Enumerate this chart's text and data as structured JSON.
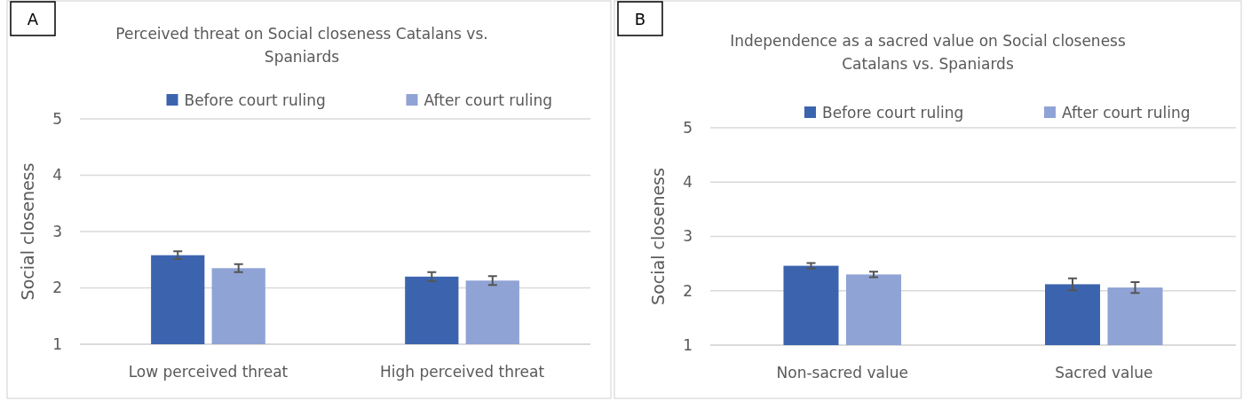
{
  "chart_data": [
    {
      "type": "bar",
      "title": "Perceived threat on Social closeness Catalans vs. Spaniards",
      "ylabel": "Social closeness",
      "categories": [
        "Low perceived threat",
        "High perceived threat"
      ],
      "series": [
        {
          "name": "Before court ruling",
          "color": "#3c64ae",
          "values": [
            2.58,
            2.2
          ],
          "errors": [
            0.07,
            0.08
          ]
        },
        {
          "name": "After court ruling",
          "color": "#8fa3d4",
          "values": [
            2.35,
            2.13
          ],
          "errors": [
            0.07,
            0.08
          ]
        }
      ],
      "ylim": [
        1,
        5
      ],
      "yticks": [
        1,
        2,
        3,
        4,
        5
      ],
      "grid": "y",
      "legend": "top",
      "annotations": [
        "A"
      ]
    },
    {
      "type": "bar",
      "title": "Independence as a sacred value on Social closeness Catalans vs. Spaniards",
      "ylabel": "Social closeness",
      "categories": [
        "Non-sacred value",
        "Sacred value"
      ],
      "series": [
        {
          "name": "Before court ruling",
          "color": "#3c64ae",
          "values": [
            2.46,
            2.12
          ],
          "errors": [
            0.05,
            0.11
          ]
        },
        {
          "name": "After court ruling",
          "color": "#8fa3d4",
          "values": [
            2.3,
            2.06
          ],
          "errors": [
            0.05,
            0.1
          ]
        }
      ],
      "ylim": [
        1,
        5
      ],
      "yticks": [
        1,
        2,
        3,
        4,
        5
      ],
      "grid": "y",
      "legend": "top",
      "annotations": [
        "B"
      ]
    }
  ]
}
